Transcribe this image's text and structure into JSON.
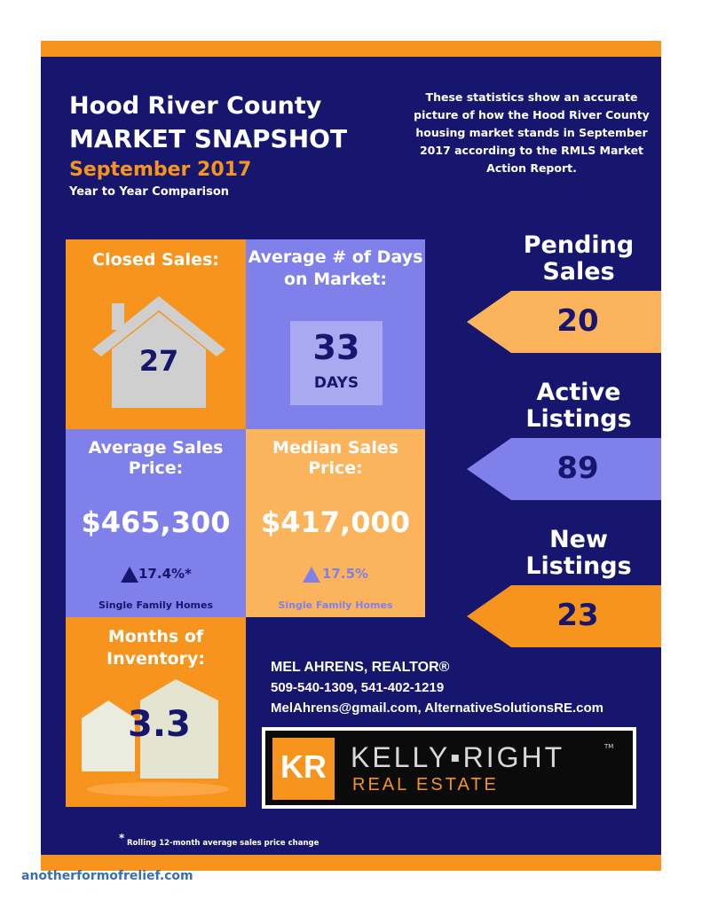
{
  "header": {
    "title_line1": "Hood River County",
    "title_line2": "MARKET SNAPSHOT",
    "date": "September 2017",
    "subtitle": "Year to Year Comparison",
    "blurb": "These statistics show an accurate picture of how the Hood River County housing market stands in September 2017 according to the RMLS Market Action Report."
  },
  "tiles": {
    "closed_sales": {
      "label": "Closed Sales:",
      "value": "27"
    },
    "days_on_market": {
      "label": "Average # of Days on Market:",
      "value": "33",
      "unit": "DAYS"
    },
    "avg_price": {
      "label": "Average Sales Price:",
      "value": "$465,300",
      "change": "17.4%*",
      "note": "Single Family Homes"
    },
    "median_price": {
      "label": "Median Sales Price:",
      "value": "$417,000",
      "change": "17.5%",
      "note": "Single Family Homes"
    },
    "inventory": {
      "label": "Months of Inventory:",
      "value": "3.3"
    }
  },
  "side": {
    "pending": {
      "label_line1": "Pending",
      "label_line2": "Sales",
      "value": "20"
    },
    "active": {
      "label_line1": "Active",
      "label_line2": "Listings",
      "value": "89"
    },
    "new": {
      "label_line1": "New",
      "label_line2": "Listings",
      "value": "23"
    }
  },
  "agent": {
    "name": "MEL AHRENS, REALTOR®",
    "phones": "509-540-1309, 541-402-1219",
    "contact": "MelAhrens@gmail.com, AlternativeSolutionsRE.com"
  },
  "logo": {
    "brand": "KELLY▪RIGHT",
    "tag": "REAL ESTATE",
    "tm": "TM",
    "mark": "KR"
  },
  "footnote": "Rolling 12-month average sales price change",
  "footnote_mark": "*",
  "watermark": "anotherformofrelief.com",
  "colors": {
    "navy": "#16166f",
    "orange": "#f7941d",
    "purple": "#8080ea",
    "peach": "#fbb35c"
  }
}
